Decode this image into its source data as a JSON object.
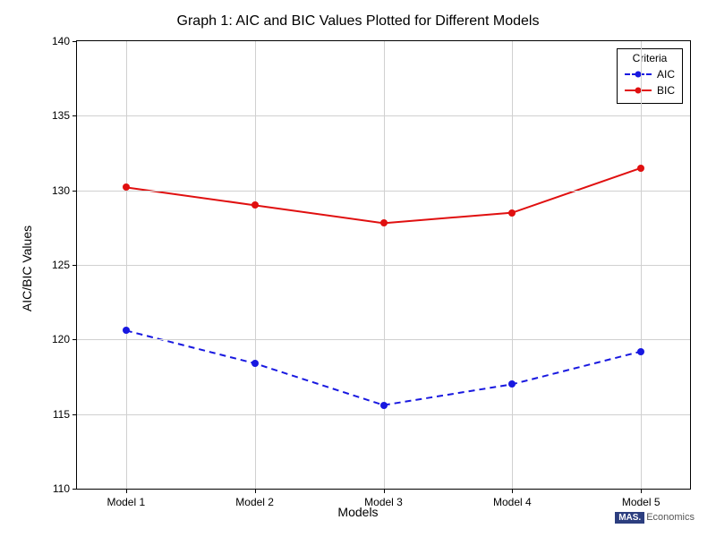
{
  "chart": {
    "type": "line",
    "title": "Graph 1: AIC and BIC Values Plotted for Different Models",
    "title_fontsize": 16,
    "xlabel": "Models",
    "ylabel": "AIC/BIC Values",
    "label_fontsize": 14,
    "tick_fontsize": 12,
    "background_color": "#ffffff",
    "grid_color": "#d0d0d0",
    "border_color": "#000000",
    "ylim": [
      110,
      140
    ],
    "yticks": [
      110,
      115,
      120,
      125,
      130,
      135,
      140
    ],
    "categories": [
      "Model 1",
      "Model 2",
      "Model 3",
      "Model 4",
      "Model 5"
    ],
    "x_positions_pct": [
      8,
      29,
      50,
      71,
      92
    ],
    "series": [
      {
        "name": "AIC",
        "color": "#1818e0",
        "line_style": "dashed",
        "dash_pattern": "7,5",
        "line_width": 2,
        "marker": "circle",
        "marker_size": 8,
        "values": [
          120.6,
          118.4,
          115.6,
          117.0,
          119.2
        ]
      },
      {
        "name": "BIC",
        "color": "#e01010",
        "line_style": "solid",
        "dash_pattern": "",
        "line_width": 2,
        "marker": "circle",
        "marker_size": 8,
        "values": [
          130.2,
          129.0,
          127.8,
          128.5,
          131.5
        ]
      }
    ],
    "legend": {
      "title": "Criteria",
      "position": "top-right",
      "border_color": "#000000",
      "background": "#ffffff"
    },
    "watermark": {
      "badge": "MAS.",
      "text": "Economics"
    }
  }
}
